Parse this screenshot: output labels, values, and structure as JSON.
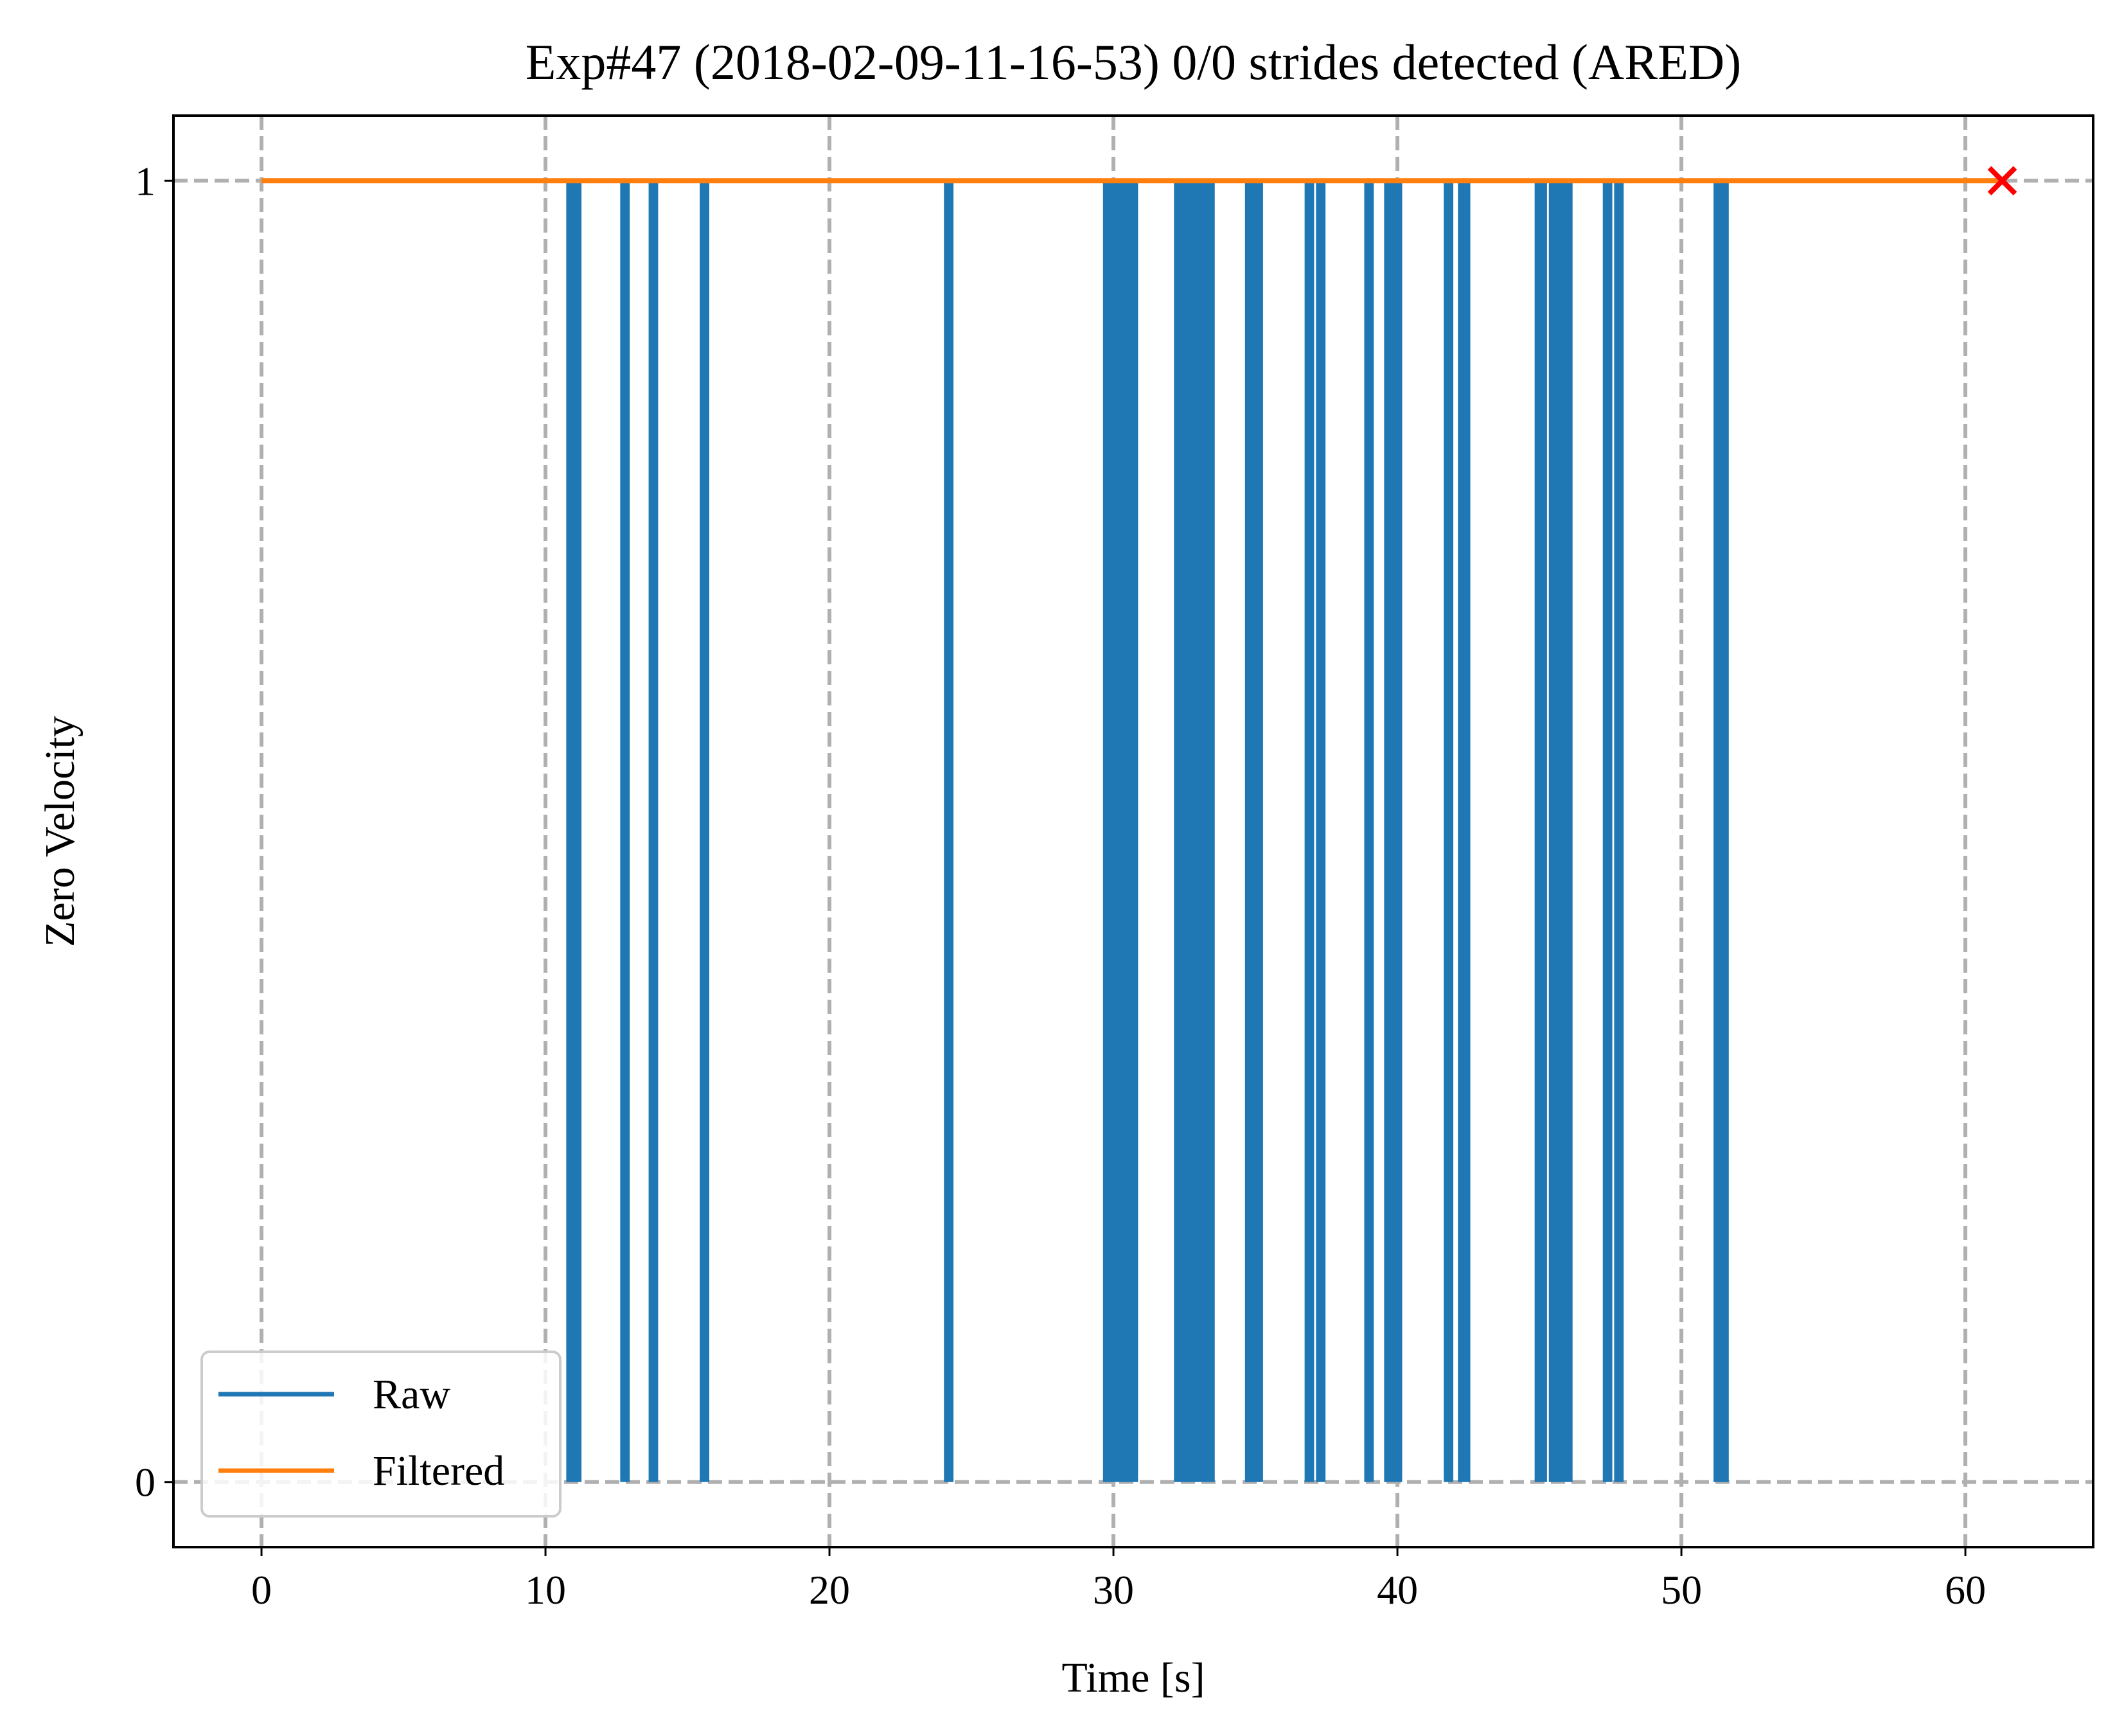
{
  "chart_data": {
    "type": "line",
    "title": "Exp#47 (2018-02-09-11-16-53) 0/0 strides detected (ARED)",
    "xlabel": "Time [s]",
    "ylabel": "Zero Velocity",
    "xlim": [
      -3.1,
      64.5
    ],
    "ylim": [
      -0.05,
      1.05
    ],
    "xticks": [
      0,
      10,
      20,
      30,
      40,
      50,
      60
    ],
    "yticks": [
      0,
      1
    ],
    "xtick_labels": [
      "0",
      "10",
      "20",
      "30",
      "40",
      "50",
      "60"
    ],
    "ytick_labels": [
      "0",
      "1"
    ],
    "grid": true,
    "grid_style": "dashed",
    "legend_location": "lower left",
    "series": [
      {
        "name": "Raw",
        "color": "#1f77b4",
        "baseline": 1,
        "zero_intervals": [
          [
            10.8,
            11.2
          ],
          [
            12.7,
            12.9
          ],
          [
            13.7,
            13.9
          ],
          [
            15.5,
            15.7
          ],
          [
            24.1,
            24.3
          ],
          [
            29.7,
            30.8
          ],
          [
            32.2,
            32.5
          ],
          [
            32.6,
            33.5
          ],
          [
            34.7,
            35.2
          ],
          [
            36.8,
            37.0
          ],
          [
            37.2,
            37.4
          ],
          [
            38.9,
            39.1
          ],
          [
            39.6,
            40.1
          ],
          [
            41.7,
            41.9
          ],
          [
            42.2,
            42.5
          ],
          [
            44.9,
            45.2
          ],
          [
            45.4,
            46.1
          ],
          [
            47.3,
            47.5
          ],
          [
            47.7,
            47.9
          ],
          [
            51.2,
            51.6
          ]
        ]
      },
      {
        "name": "Filtered",
        "color": "#ff7f0e",
        "x": [
          0,
          61.3
        ],
        "y": [
          1,
          1
        ]
      }
    ],
    "markers": [
      {
        "x": 61.3,
        "y": 1,
        "symbol": "x",
        "color": "#ff0000"
      }
    ]
  }
}
